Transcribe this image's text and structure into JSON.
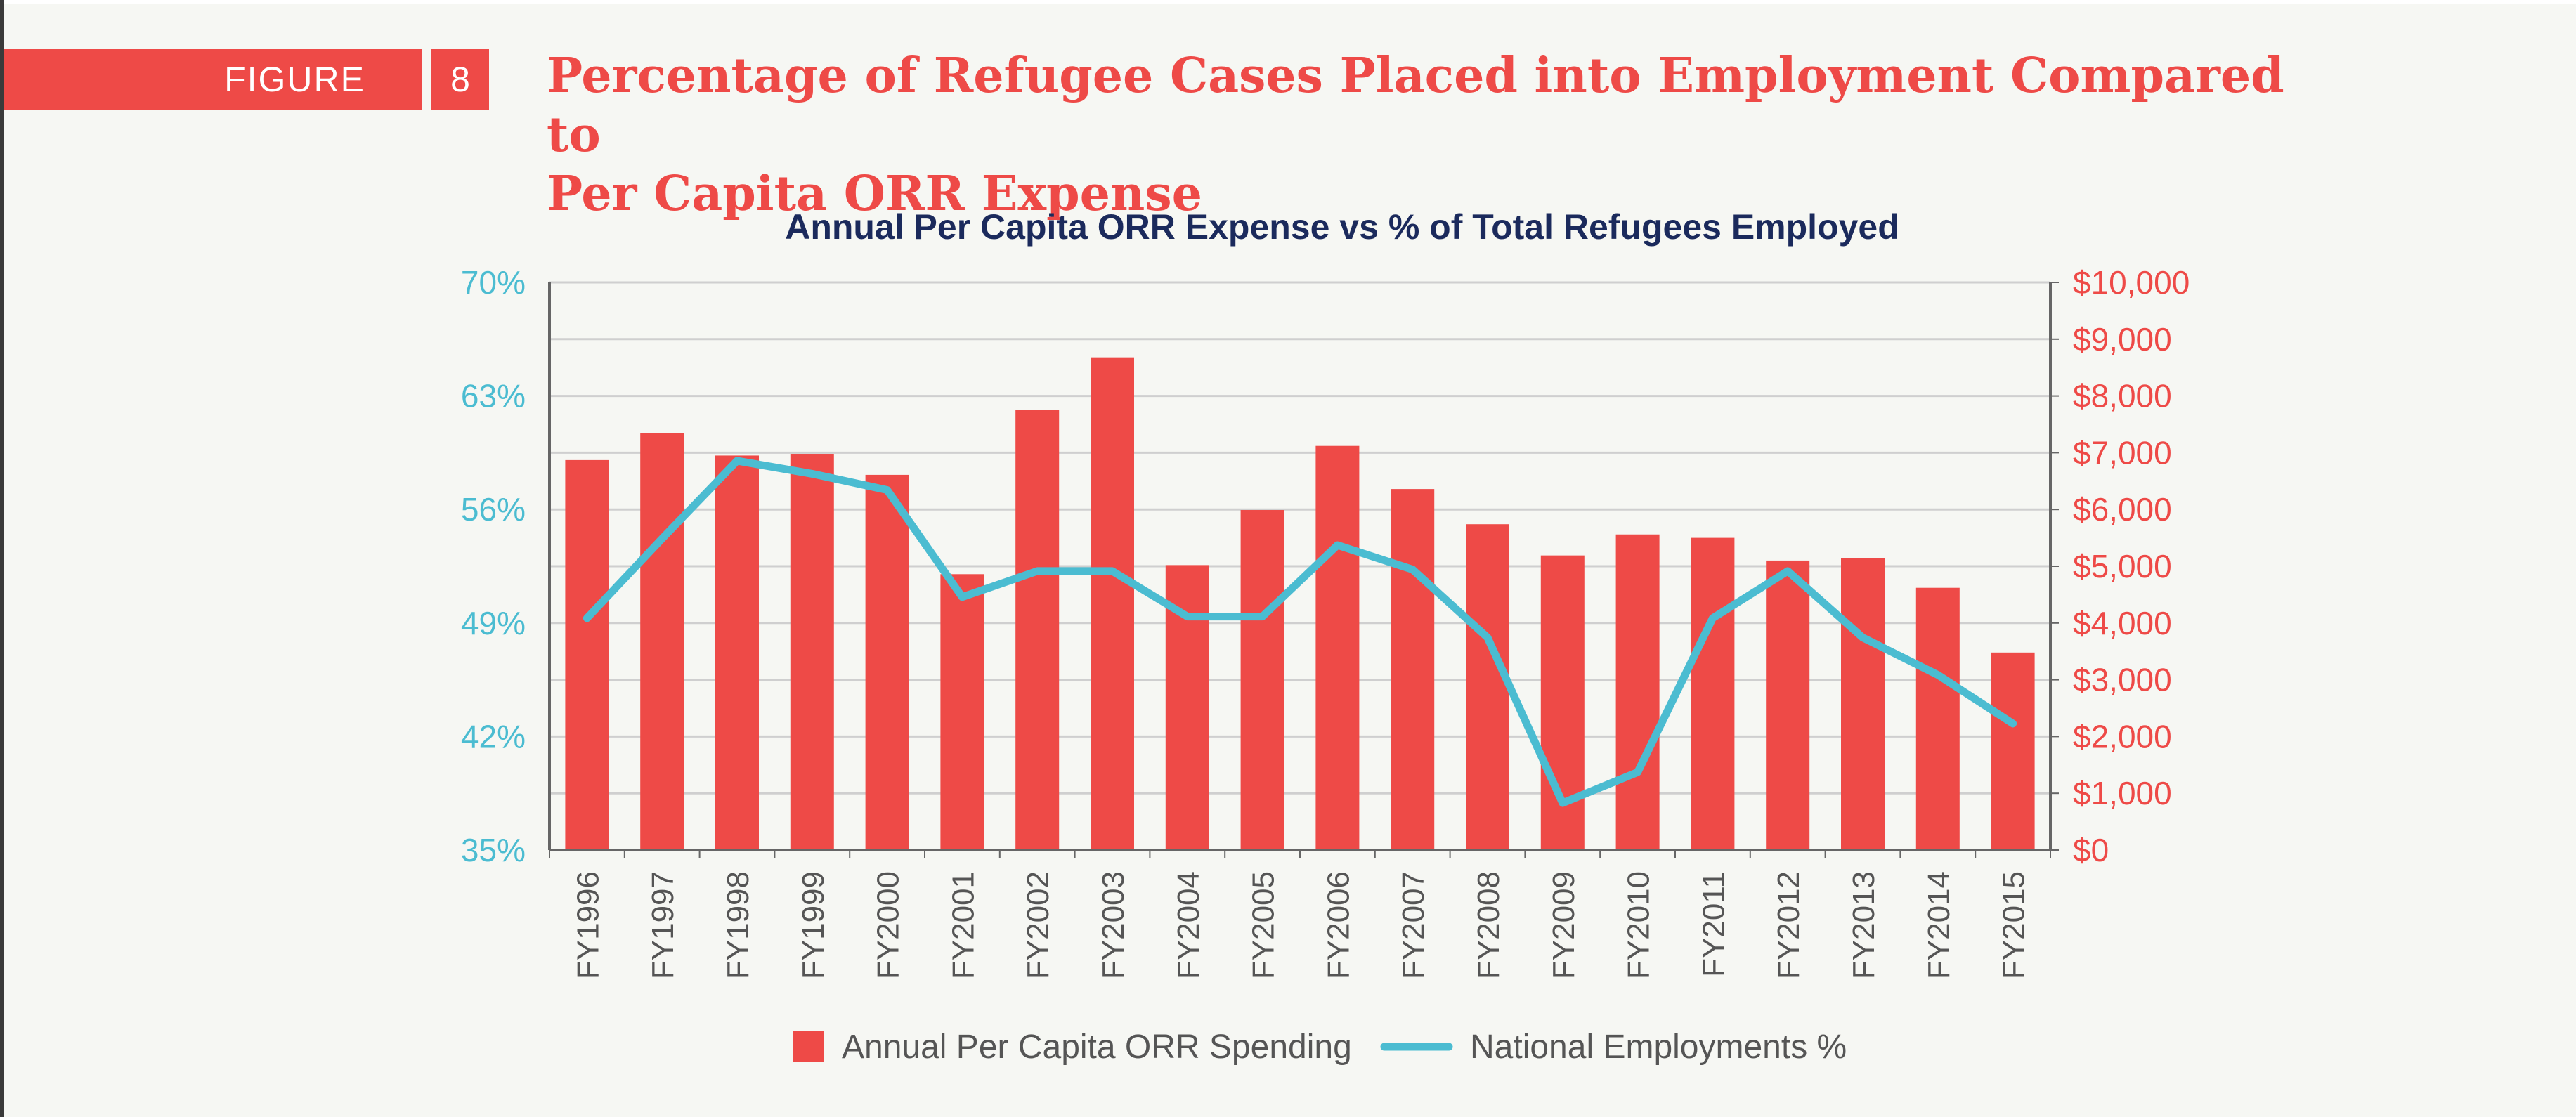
{
  "figure": {
    "label": "FIGURE",
    "number": "8",
    "title_line1": "Percentage of Refugee Cases Placed into Employment Compared to",
    "title_line2": "Per Capita ORR Expense"
  },
  "colors": {
    "bar": "#ee4a47",
    "line": "#4bbcd1",
    "left_axis": "#4bbcd1",
    "right_axis": "#ee4a47",
    "chart_title": "#1b2a5c",
    "category_text": "#555555",
    "grid": "#cfcfcf",
    "axis": "#666666"
  },
  "chart_data": {
    "type": "bar",
    "title": "Annual Per Capita ORR Expense vs % of Total Refugees Employed",
    "categories": [
      "FY1996",
      "FY1997",
      "FY1998",
      "FY1999",
      "FY2000",
      "FY2001",
      "FY2002",
      "FY2003",
      "FY2004",
      "FY2005",
      "FY2006",
      "FY2007",
      "FY2008",
      "FY2009",
      "FY2010",
      "FY2011",
      "FY2012",
      "FY2013",
      "FY2014",
      "FY2015"
    ],
    "series": [
      {
        "name": "Annual Per Capita ORR Spending",
        "type": "bar",
        "axis": "right",
        "values": [
          6870,
          7350,
          6950,
          6980,
          6610,
          4860,
          7750,
          8680,
          5020,
          5990,
          7120,
          6360,
          5740,
          5190,
          5560,
          5500,
          5100,
          5140,
          4620,
          3480
        ]
      },
      {
        "name": "National Employments %",
        "type": "line",
        "axis": "left",
        "values": [
          49.3,
          54.2,
          59.0,
          58.2,
          57.2,
          50.6,
          52.2,
          52.2,
          49.4,
          49.4,
          53.8,
          52.3,
          48.1,
          37.9,
          39.8,
          49.3,
          52.2,
          48.1,
          45.8,
          42.8
        ]
      }
    ],
    "left_axis": {
      "ticks": [
        "35%",
        "42%",
        "49%",
        "56%",
        "63%",
        "70%"
      ],
      "min": 35,
      "max": 70
    },
    "right_axis": {
      "ticks": [
        "$0",
        "$1,000",
        "$2,000",
        "$3,000",
        "$4,000",
        "$5,000",
        "$6,000",
        "$7,000",
        "$8,000",
        "$9,000",
        "$10,000"
      ],
      "min": 0,
      "max": 10000
    },
    "grid": true,
    "legend_position": "bottom"
  }
}
